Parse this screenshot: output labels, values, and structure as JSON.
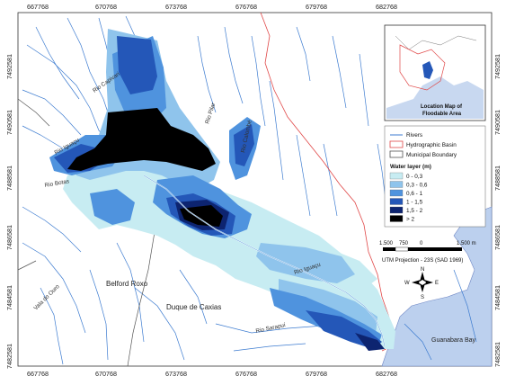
{
  "axes": {
    "x_ticks": [
      "667768",
      "670768",
      "673768",
      "676768",
      "679768",
      "682768"
    ],
    "y_ticks": [
      "7492581",
      "7490581",
      "7488581",
      "7486581",
      "7484581",
      "7482581"
    ]
  },
  "rivers": {
    "capivari": "Rio Capivari",
    "pilar": "Rio Pilar",
    "calombe": "Rio Calombé",
    "iguacu_w": "Rio Iguaçu",
    "botas": "Rio Botas",
    "ouro": "Vala do Ouro",
    "iguacu_e": "Rio Iguaçu",
    "sarapui": "Rio Sarapuí"
  },
  "places": {
    "belford": "Belford Roxo",
    "duque": "Duque de Caxias",
    "bay": "Guanabara Bay"
  },
  "inset": {
    "label1": "Location Map of",
    "label2": "Floodable Area"
  },
  "legend": {
    "rivers": "Rivers",
    "basin": "Hydrographic Basin",
    "municipal": "Municipal Boundary",
    "title": "Water layer (m)",
    "classes": [
      {
        "label": "0 - 0,3",
        "color": "#c7ecf2"
      },
      {
        "label": "0,3 - 0,6",
        "color": "#8fc4ec"
      },
      {
        "label": "0,6 - 1",
        "color": "#4f93de"
      },
      {
        "label": "1 - 1,5",
        "color": "#2457b8"
      },
      {
        "label": "1,5 - 2",
        "color": "#0d2470"
      },
      {
        "label": "> 2",
        "color": "#000000"
      }
    ]
  },
  "scalebar": {
    "t0": "1.500",
    "t1": "750",
    "t2": "0",
    "t3": "1.500 m"
  },
  "projection": "UTM Projection - 23S (SAD 1969)",
  "north": {
    "n": "N",
    "s": "S",
    "e": "E",
    "w": "W"
  }
}
